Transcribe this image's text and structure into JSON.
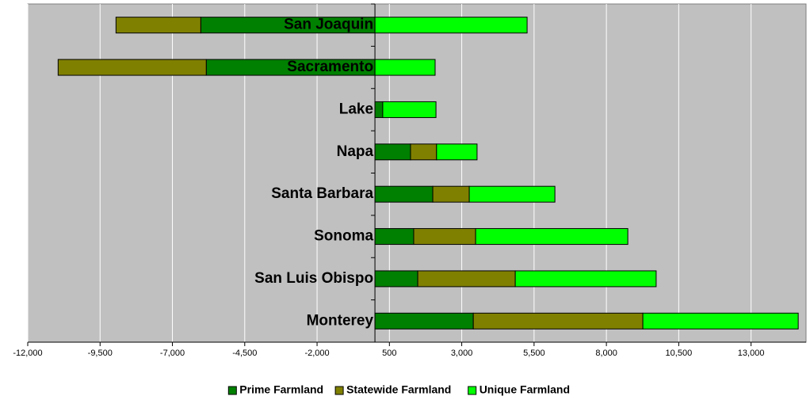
{
  "chart_data": {
    "type": "stacked_barh",
    "categories": [
      "San Joaquin",
      "Sacramento",
      "Lake",
      "Napa",
      "Santa Barbara",
      "Sonoma",
      "San Luis Obispo",
      "Monterey"
    ],
    "series": [
      {
        "name": "Prime Farmland",
        "color": "#008000",
        "values": [
          -6020,
          -5830,
          270,
          1230,
          2000,
          1340,
          1480,
          3400
        ]
      },
      {
        "name": "Statewide Farmland",
        "color": "#808000",
        "values": [
          -2930,
          -5120,
          0,
          900,
          1260,
          2140,
          3370,
          5860
        ]
      },
      {
        "name": "Unique Farmland",
        "color": "#00ff00",
        "values": [
          5260,
          2080,
          1840,
          1400,
          2960,
          5260,
          4870,
          5370
        ]
      }
    ],
    "xlim": [
      -12000,
      14900
    ],
    "xticks": [
      {
        "value": -12000,
        "label": "-12,000"
      },
      {
        "value": -9500,
        "label": "-9,500"
      },
      {
        "value": -7000,
        "label": "-7,000"
      },
      {
        "value": -4500,
        "label": "-4,500"
      },
      {
        "value": -2000,
        "label": "-2,000"
      },
      500,
      {
        "value": 3000,
        "label": "3,000"
      },
      {
        "value": 5500,
        "label": "5,500"
      },
      {
        "value": 8000,
        "label": "8,000"
      },
      {
        "value": 10500,
        "label": "10,500"
      },
      {
        "value": 13000,
        "label": "13,000"
      }
    ],
    "grid": true,
    "legend": "bottom"
  }
}
